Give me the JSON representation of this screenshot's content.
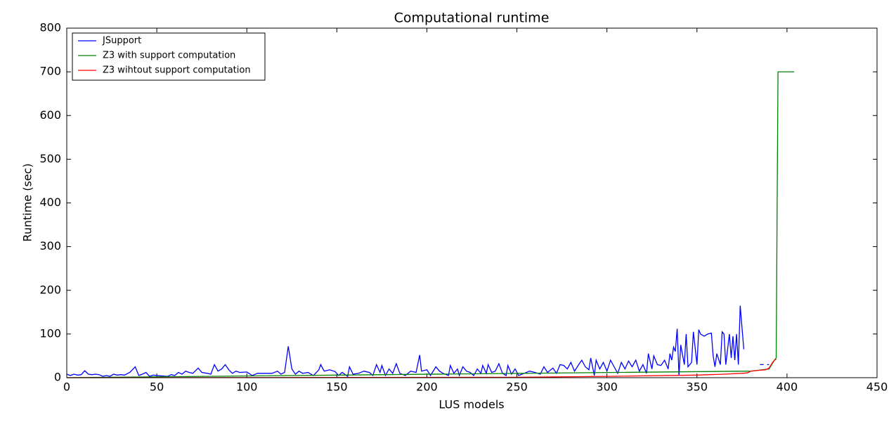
{
  "chart_data": {
    "type": "line",
    "title": "Computational runtime",
    "x_label": "LUS models",
    "y_label": "Runtime (sec)",
    "xlim": [
      0,
      450
    ],
    "xticks": [
      0,
      50,
      100,
      150,
      200,
      250,
      300,
      350,
      400,
      450
    ],
    "ylim": [
      0,
      800
    ],
    "yticks": [
      0,
      100,
      200,
      300,
      400,
      500,
      600,
      700,
      800
    ],
    "legend": "upper left",
    "series": [
      {
        "name": "JSupport",
        "color": "#0000ff",
        "x": [
          0,
          2,
          4,
          6,
          8,
          10,
          12,
          14,
          16,
          18,
          20,
          22,
          24,
          26,
          28,
          30,
          32,
          35,
          38,
          40,
          42,
          44,
          46,
          48,
          50,
          53,
          56,
          58,
          60,
          62,
          64,
          66,
          68,
          70,
          73,
          75,
          78,
          80,
          82,
          84,
          86,
          88,
          90,
          92,
          94,
          96,
          100,
          103,
          106,
          110,
          114,
          117,
          119,
          121,
          123,
          125,
          127,
          129,
          131,
          134,
          137,
          140,
          141,
          143,
          146,
          149,
          151,
          153,
          156,
          157,
          159,
          162,
          165,
          168,
          170,
          172,
          174,
          175,
          177,
          179,
          181,
          183,
          185,
          188,
          191,
          194,
          196,
          197,
          200,
          202,
          205,
          207,
          209,
          212,
          213,
          215,
          217,
          218,
          220,
          222,
          224,
          226,
          228,
          230,
          231,
          233,
          234,
          236,
          238,
          240,
          242,
          244,
          245,
          247,
          249,
          251,
          254,
          257,
          260,
          263,
          265,
          267,
          270,
          272,
          274,
          276,
          278,
          280,
          282,
          284,
          286,
          288,
          290,
          291,
          293,
          294,
          296,
          298,
          300,
          302,
          304,
          306,
          308,
          310,
          312,
          314,
          316,
          318,
          320,
          322,
          323,
          325,
          326,
          328,
          330,
          332,
          334,
          335,
          336,
          337,
          338,
          339,
          340,
          341,
          343,
          344,
          345,
          347,
          348,
          350,
          351,
          352,
          354,
          356,
          358,
          359,
          360,
          361,
          363,
          364,
          365,
          366,
          368,
          369,
          370,
          371,
          372,
          373,
          374,
          376,
          null,
          385,
          387,
          null,
          389,
          390
        ],
        "values": [
          8,
          5,
          8,
          6,
          7,
          16,
          8,
          7,
          8,
          7,
          3,
          5,
          3,
          8,
          6,
          7,
          6,
          12,
          25,
          5,
          8,
          12,
          3,
          6,
          5,
          4,
          3,
          7,
          5,
          12,
          8,
          15,
          12,
          10,
          22,
          12,
          10,
          8,
          30,
          15,
          20,
          30,
          18,
          10,
          15,
          12,
          13,
          5,
          10,
          10,
          10,
          15,
          8,
          12,
          72,
          20,
          8,
          15,
          10,
          12,
          5,
          18,
          30,
          15,
          18,
          14,
          5,
          12,
          3,
          25,
          8,
          10,
          15,
          12,
          5,
          30,
          12,
          28,
          5,
          20,
          10,
          32,
          10,
          5,
          15,
          12,
          52,
          15,
          18,
          5,
          25,
          15,
          10,
          5,
          28,
          10,
          20,
          5,
          25,
          15,
          12,
          5,
          20,
          10,
          28,
          10,
          30,
          12,
          15,
          32,
          10,
          5,
          28,
          8,
          20,
          5,
          10,
          15,
          12,
          8,
          25,
          12,
          22,
          10,
          30,
          28,
          20,
          35,
          15,
          28,
          40,
          25,
          18,
          45,
          5,
          40,
          20,
          35,
          15,
          40,
          25,
          10,
          35,
          20,
          38,
          25,
          40,
          15,
          30,
          10,
          55,
          20,
          50,
          30,
          28,
          40,
          20,
          55,
          40,
          70,
          60,
          112,
          5,
          75,
          30,
          100,
          25,
          35,
          105,
          30,
          110,
          100,
          95,
          100,
          102,
          50,
          25,
          55,
          30,
          105,
          100,
          30,
          100,
          45,
          95,
          40,
          100,
          30,
          165,
          65,
          null,
          30,
          30,
          null,
          30,
          30
        ]
      },
      {
        "name": "Z3 with support computation",
        "color": "#008000",
        "x": [
          0,
          380,
          390,
          393,
          394,
          395,
          404
        ],
        "values": [
          0,
          15,
          20,
          40,
          45,
          700,
          700
        ]
      },
      {
        "name": "Z3 wihtout support computation",
        "color": "#ff0000",
        "x": [
          0,
          250,
          300,
          350,
          365,
          375,
          378,
          380,
          385,
          388,
          390,
          392,
          393,
          394
        ],
        "values": [
          0,
          1,
          3,
          6,
          8,
          10,
          11,
          15,
          17,
          18,
          22,
          35,
          40,
          42
        ]
      }
    ]
  }
}
